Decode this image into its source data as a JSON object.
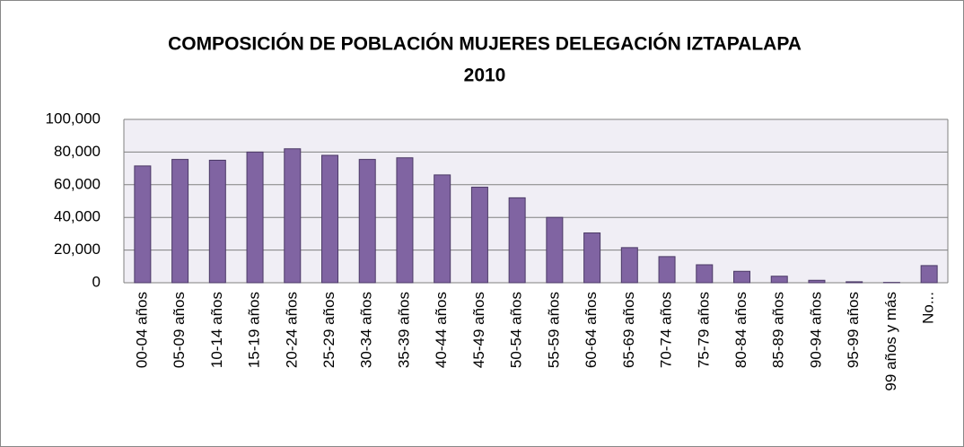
{
  "chart_data": {
    "type": "bar",
    "title": [
      "COMPOSICIÓN DE POBLACIÓN MUJERES DELEGACIÓN IZTAPALAPA",
      "2010"
    ],
    "categories": [
      "00-04 años",
      "05-09 años",
      "10-14 años",
      "15-19 años",
      "20-24 años",
      "25-29 años",
      "30-34 años",
      "35-39 años",
      "40-44 años",
      "45-49 años",
      "50-54 años",
      "55-59 años",
      "60-64 años",
      "65-69 años",
      "70-74 años",
      "75-79 años",
      "80-84 años",
      "85-89 años",
      "90-94 años",
      "95-99 años",
      "99 años y más",
      "No..."
    ],
    "values": [
      71500,
      75500,
      75000,
      80000,
      82000,
      78000,
      75500,
      76500,
      66000,
      58500,
      52000,
      40000,
      30500,
      21500,
      16000,
      11000,
      7000,
      4000,
      1500,
      600,
      200,
      10500
    ],
    "color": "#8064a2",
    "ylim": [
      0,
      100000
    ],
    "yticks": [
      0,
      {
        "value": 20000,
        "label": "20,000"
      },
      {
        "value": 40000,
        "label": "40,000"
      },
      {
        "value": 60000,
        "label": "60,000"
      },
      {
        "value": 80000,
        "label": "80,000"
      },
      {
        "value": 100000,
        "label": "100,000"
      }
    ],
    "grid": true
  }
}
